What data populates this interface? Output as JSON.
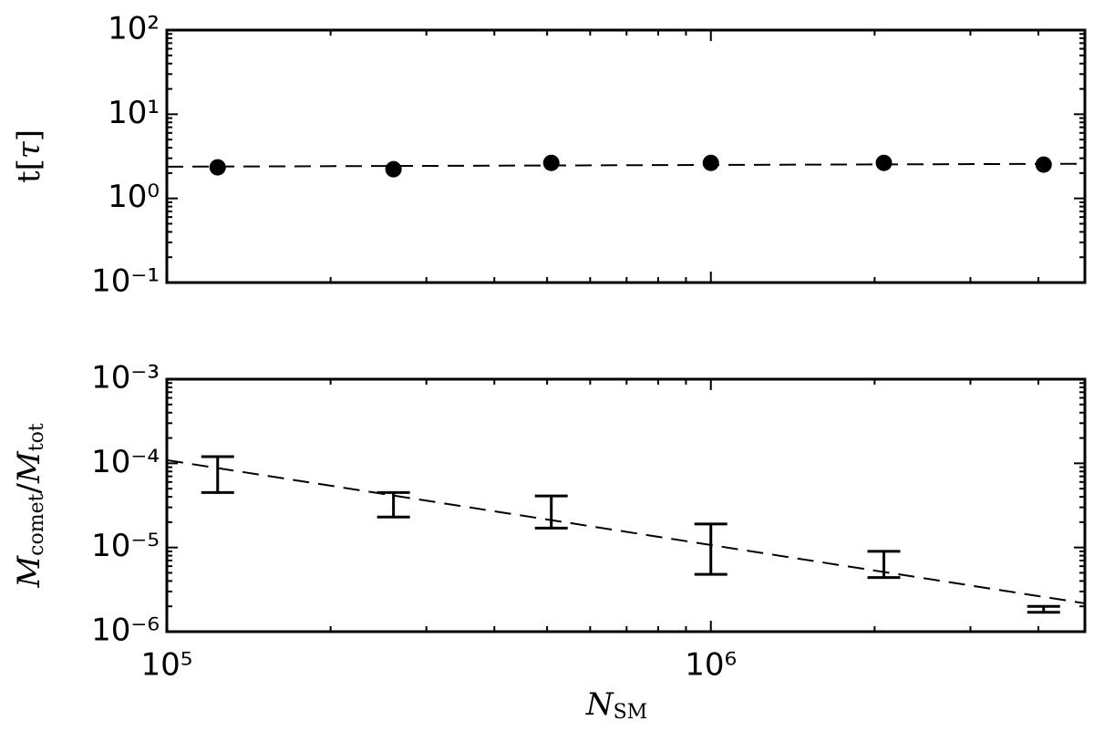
{
  "chart_data": [
    {
      "type": "scatter",
      "ylabel": [
        "t[",
        "τ",
        "]"
      ],
      "x": [
        124000,
        261000,
        509000,
        1000000,
        2080000,
        4090000
      ],
      "values": [
        2.34,
        2.22,
        2.64,
        2.64,
        2.64,
        2.52
      ],
      "fit": {
        "x": [
          100000,
          4870000
        ],
        "values": [
          2.38,
          2.58
        ]
      },
      "color": "#000000",
      "log_x": true,
      "log_y": true,
      "xlim": [
        100000,
        4870000
      ],
      "ylim": [
        0.1,
        100
      ],
      "yticks": [
        {
          "value": 0.1,
          "label": "10⁻¹"
        },
        {
          "value": 1,
          "label": "10⁰"
        },
        {
          "value": 10,
          "label": "10¹"
        },
        {
          "value": 100,
          "label": "10²"
        }
      ]
    },
    {
      "type": "errorbar",
      "ylabel": [
        "M",
        "comet",
        "/",
        "M",
        "tot"
      ],
      "xlabel": [
        "N",
        "SM"
      ],
      "x": [
        124000,
        261000,
        509000,
        1000000,
        2080000,
        4090000
      ],
      "lower": [
        4.5e-05,
        2.3e-05,
        1.7e-05,
        4.8e-06,
        4.4e-06,
        1.7e-06
      ],
      "upper": [
        0.00012,
        4.5e-05,
        4.1e-05,
        1.9e-05,
        9e-06,
        2e-06
      ],
      "fit": {
        "x": [
          100000,
          4870000
        ],
        "values": [
          0.000109,
          2.17e-06
        ]
      },
      "color": "#000000",
      "log_x": true,
      "log_y": true,
      "xlim": [
        100000,
        4870000
      ],
      "ylim": [
        1e-06,
        0.001
      ],
      "xticks": [
        {
          "value": 100000,
          "label": "10⁵"
        },
        {
          "value": 1000000,
          "label": "10⁶"
        }
      ],
      "yticks": [
        {
          "value": 1e-06,
          "label": "10⁻⁶"
        },
        {
          "value": 1e-05,
          "label": "10⁻⁵"
        },
        {
          "value": 0.0001,
          "label": "10⁻⁴"
        },
        {
          "value": 0.001,
          "label": "10⁻³"
        }
      ]
    }
  ]
}
